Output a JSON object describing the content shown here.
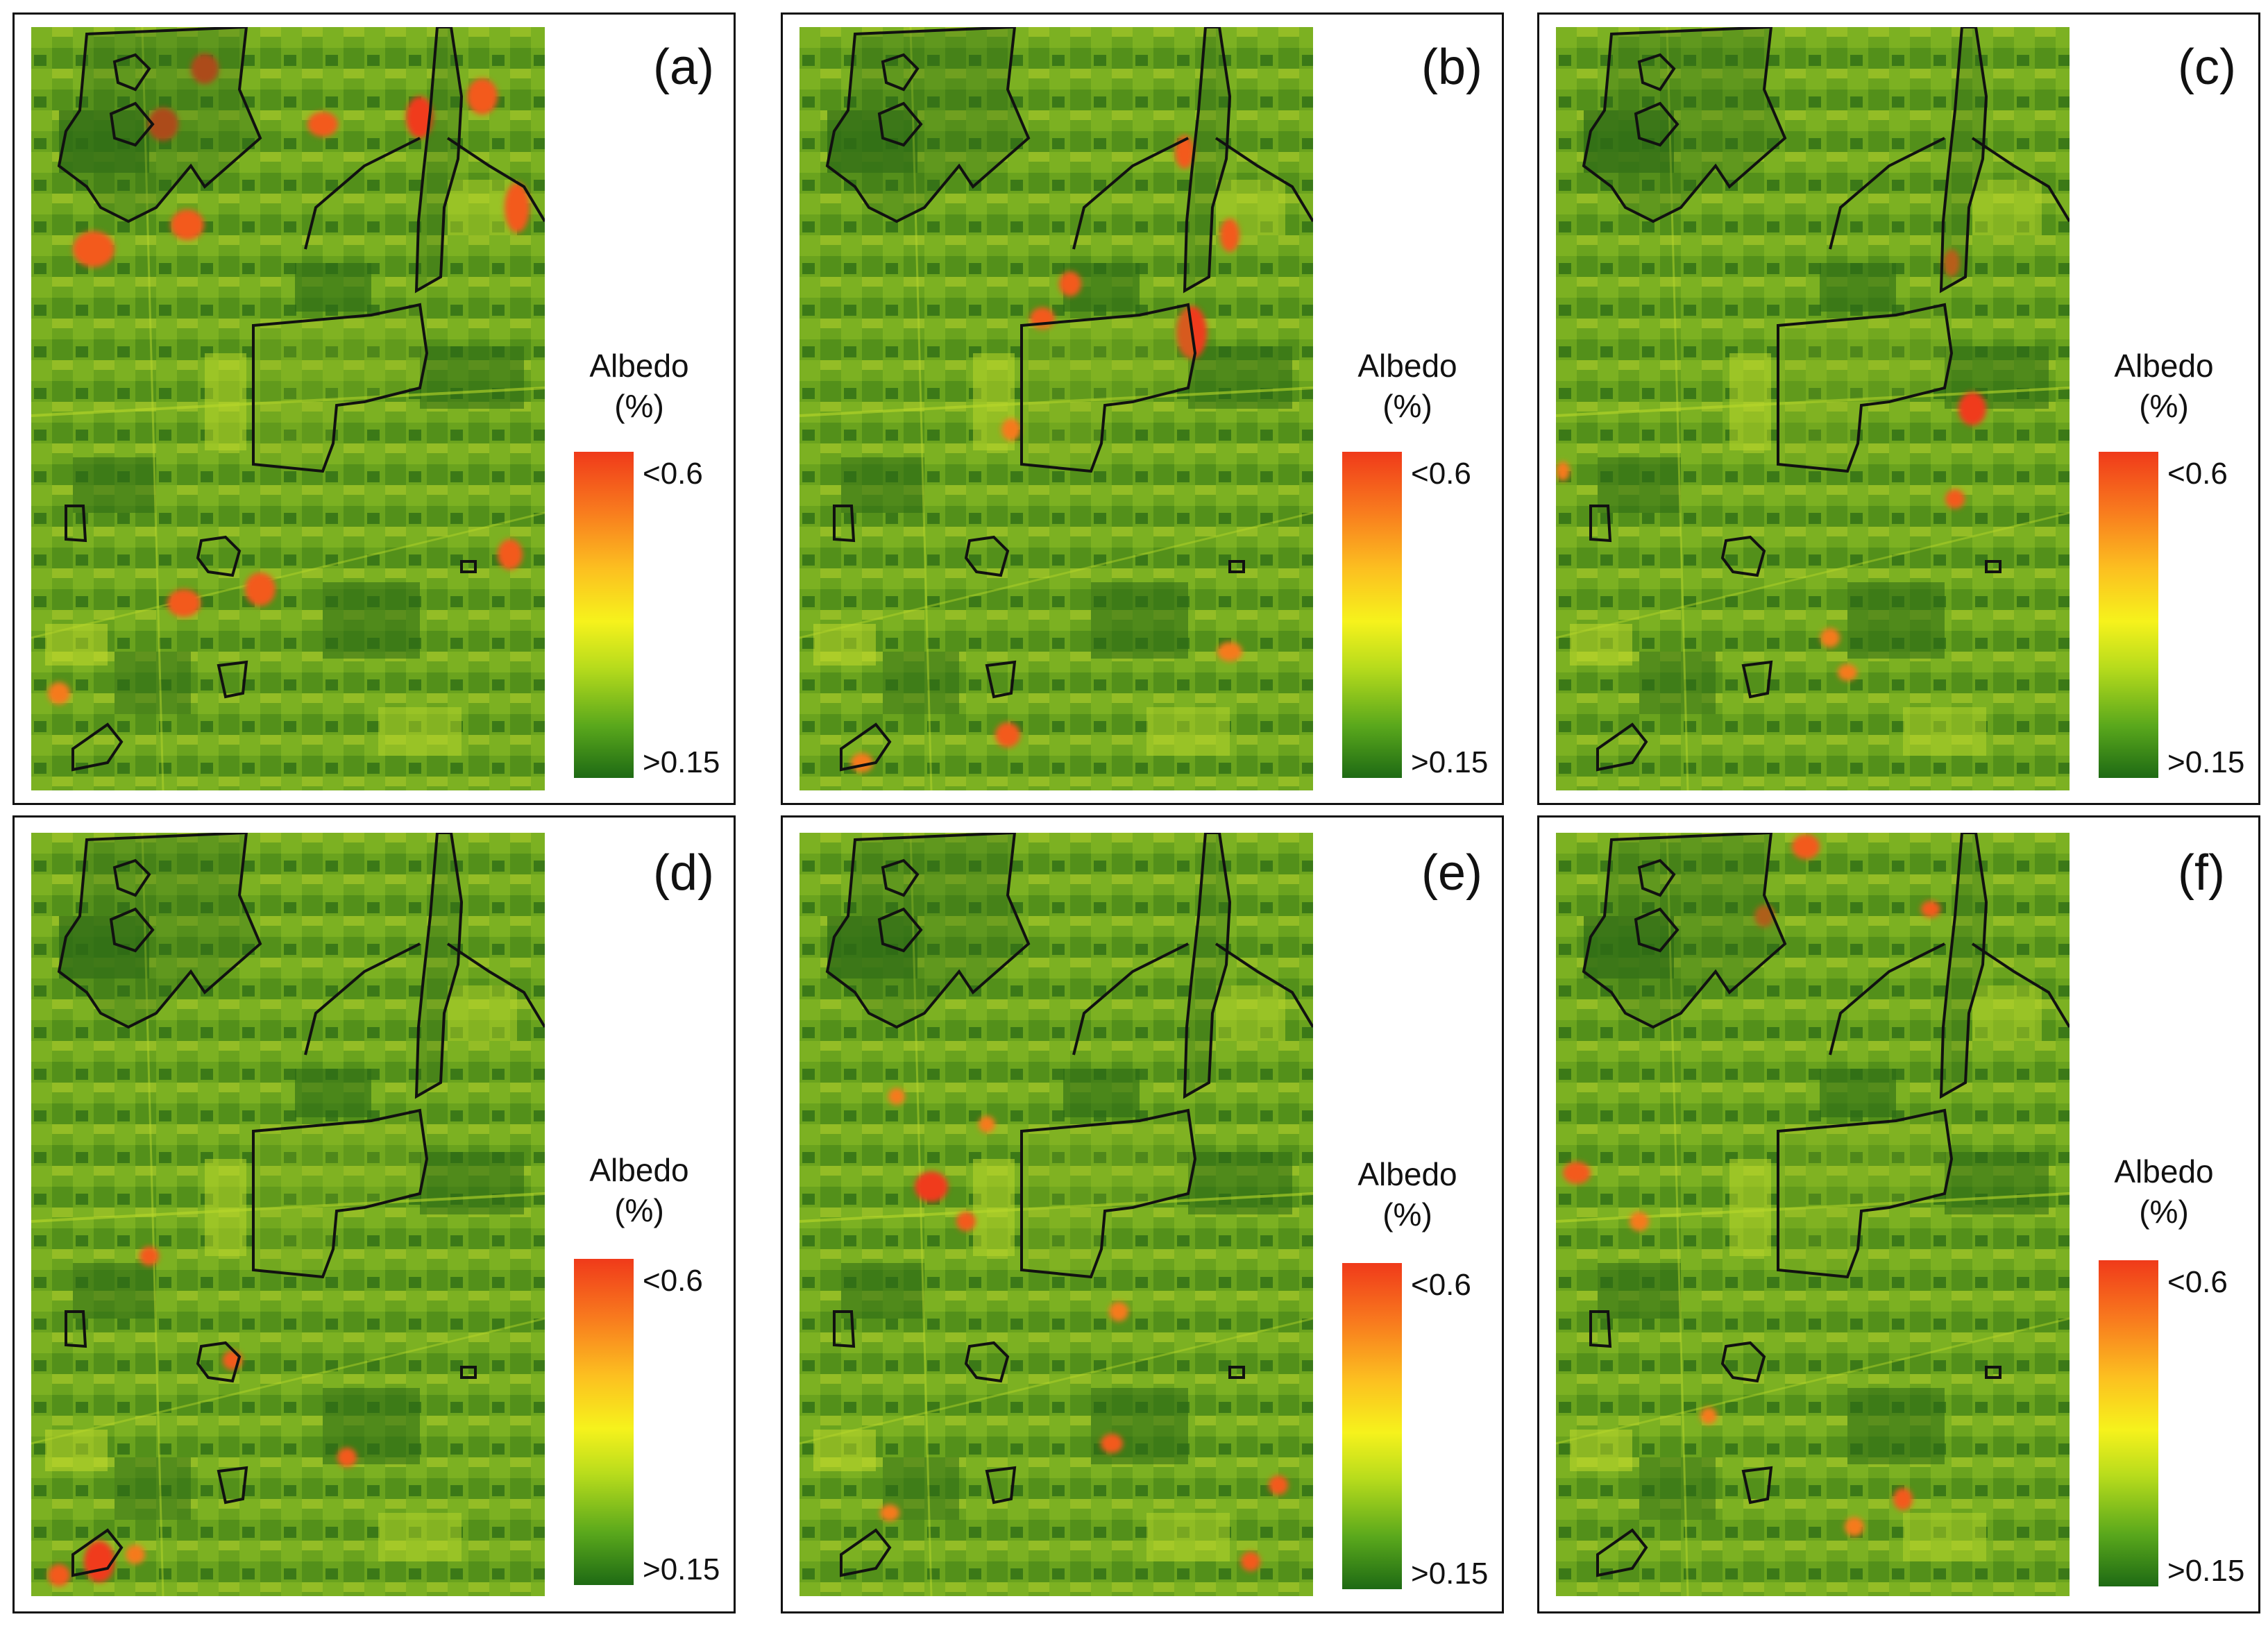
{
  "figure": {
    "panels": [
      {
        "id": "a",
        "label": "(a)"
      },
      {
        "id": "b",
        "label": "(b)"
      },
      {
        "id": "c",
        "label": "(c)"
      },
      {
        "id": "d",
        "label": "(d)"
      },
      {
        "id": "e",
        "label": "(e)"
      },
      {
        "id": "f",
        "label": "(f)"
      }
    ],
    "legend": {
      "title_line1": "Albedo",
      "title_line2": "(%)",
      "max_label": "<0.6",
      "min_label": ">0.15"
    },
    "colors": {
      "high": "#f03a1a",
      "mid": "#f6f21c",
      "low": "#1e6a14",
      "boundary": "#111111"
    }
  }
}
